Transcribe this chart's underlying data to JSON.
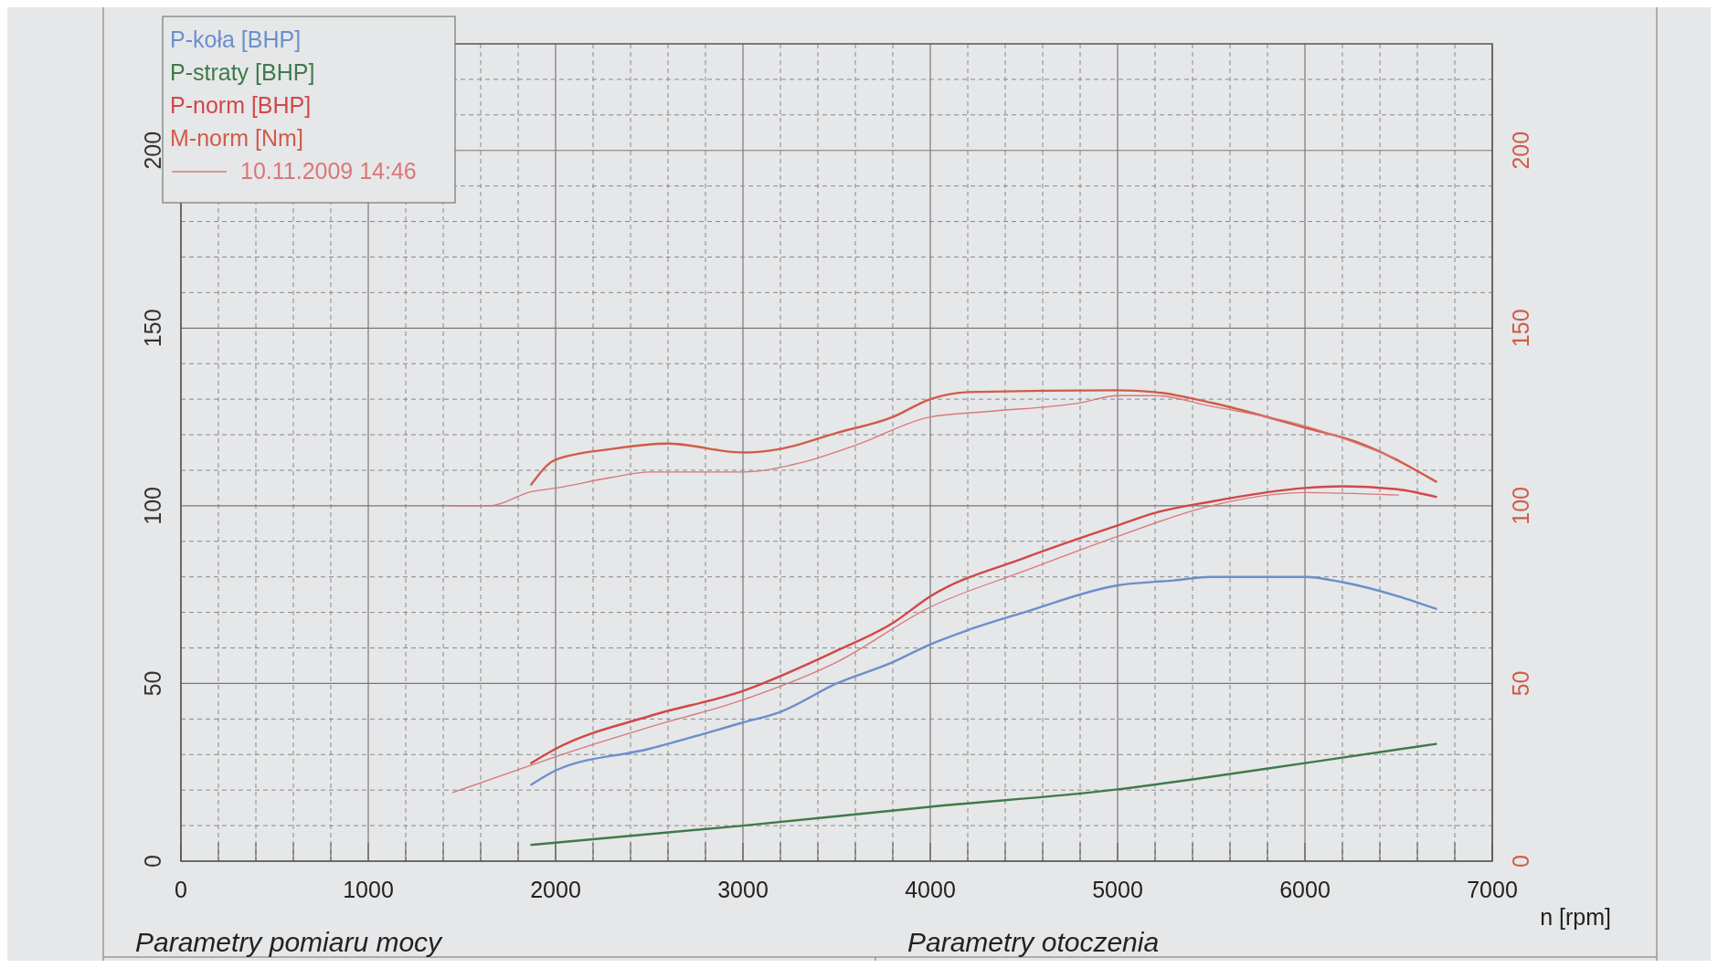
{
  "chart_data": {
    "type": "line",
    "xlabel": "n [rpm]",
    "xlim": [
      0,
      7000
    ],
    "xticks": [
      0,
      {
        "value": 200,
        "label": null
      },
      {
        "value": 400,
        "label": null
      },
      {
        "value": 600,
        "label": null
      },
      {
        "value": 800,
        "label": null
      },
      1000,
      {
        "value": 1200,
        "label": null
      },
      {
        "value": 1400,
        "label": null
      },
      {
        "value": 1600,
        "label": null
      },
      {
        "value": 1800,
        "label": null
      },
      2000,
      {
        "value": 2200,
        "label": null
      },
      {
        "value": 2400,
        "label": null
      },
      {
        "value": 2600,
        "label": null
      },
      {
        "value": 2800,
        "label": null
      },
      3000,
      {
        "value": 3200,
        "label": null
      },
      {
        "value": 3400,
        "label": null
      },
      {
        "value": 3600,
        "label": null
      },
      {
        "value": 3800,
        "label": null
      },
      4000,
      {
        "value": 4200,
        "label": null
      },
      {
        "value": 4400,
        "label": null
      },
      {
        "value": 4600,
        "label": null
      },
      {
        "value": 4800,
        "label": null
      },
      5000,
      {
        "value": 5200,
        "label": null
      },
      {
        "value": 5400,
        "label": null
      },
      {
        "value": 5600,
        "label": null
      },
      {
        "value": 5800,
        "label": null
      },
      6000,
      {
        "value": 6200,
        "label": null
      },
      {
        "value": 6400,
        "label": null
      },
      {
        "value": 6600,
        "label": null
      },
      {
        "value": 6800,
        "label": null
      },
      7000
    ],
    "ylim": [
      0,
      230
    ],
    "yticks": [
      0,
      {
        "value": 10,
        "label": null
      },
      {
        "value": 20,
        "label": null
      },
      {
        "value": 30,
        "label": null
      },
      {
        "value": 40,
        "label": null
      },
      50,
      {
        "value": 60,
        "label": null
      },
      {
        "value": 70,
        "label": null
      },
      {
        "value": 80,
        "label": null
      },
      {
        "value": 90,
        "label": null
      },
      100,
      {
        "value": 110,
        "label": null
      },
      {
        "value": 120,
        "label": null
      },
      {
        "value": 130,
        "label": null
      },
      {
        "value": 140,
        "label": null
      },
      150,
      {
        "value": 160,
        "label": null
      },
      {
        "value": 170,
        "label": null
      },
      {
        "value": 180,
        "label": null
      },
      {
        "value": 190,
        "label": null
      },
      200,
      {
        "value": 210,
        "label": null
      },
      {
        "value": 220,
        "label": null
      }
    ],
    "y2lim": [
      0,
      230
    ],
    "y2ticks": [
      0,
      50,
      100,
      150,
      200
    ],
    "grid": true,
    "legend": "top left",
    "line_style": "solid",
    "annotations": [
      "Parametry pomiaru mocy",
      "Parametry otoczenia"
    ],
    "series": [
      {
        "name": "P-koła [BHP]",
        "color": "#6b8fcc",
        "x": [
          1870,
          2000,
          2500,
          3000,
          3200,
          3500,
          3800,
          4000,
          4200,
          4500,
          5000,
          5300,
          5500,
          6000,
          6200,
          6500,
          6700
        ],
        "values": [
          21.5,
          25.5,
          31.6,
          39,
          42,
          50,
          56,
          61,
          65,
          70,
          77.6,
          79,
          80,
          80,
          78.5,
          74.5,
          71
        ]
      },
      {
        "name": "P-straty [BHP]",
        "color": "#3f7a4a",
        "x": [
          1870,
          3000,
          4000,
          5000,
          5400,
          6000,
          6700
        ],
        "values": [
          4.6,
          10,
          15.3,
          20.2,
          23,
          27.6,
          33
        ]
      },
      {
        "name": "P-norm [BHP]",
        "color": "#d04848",
        "x": [
          1870,
          2000,
          2500,
          3000,
          3500,
          3800,
          4000,
          4500,
          5000,
          5200,
          5500,
          6000,
          6200,
          6500,
          6700
        ],
        "values": [
          27.6,
          31.6,
          40.8,
          47.9,
          59.2,
          67,
          74.5,
          85.3,
          94.5,
          98,
          101.2,
          105,
          105.5,
          104.6,
          102.5
        ]
      },
      {
        "name": "M-norm [Nm]",
        "color": "#d05c48",
        "axis": "y2",
        "x": [
          1870,
          2000,
          2300,
          2600,
          3000,
          3200,
          3500,
          3800,
          4000,
          4200,
          5000,
          5200,
          5500,
          6000,
          6300,
          6700
        ],
        "values": [
          106,
          113,
          116,
          117.5,
          115,
          116,
          120.5,
          125,
          130,
          132,
          132.5,
          132,
          129,
          122,
          117.5,
          106.8
        ]
      },
      {
        "name": "10.11.2009 14:46",
        "color": "#d87878",
        "x": [
          1450,
          1870,
          2000,
          2500,
          3000,
          3500,
          4000,
          4500,
          5000,
          5500,
          6000,
          6500
        ],
        "values": [
          19.3,
          27,
          29.4,
          37.7,
          45.4,
          56,
          71.5,
          81.6,
          91.4,
          100,
          103.7,
          103
        ]
      },
      {
        "color": "#d87878",
        "axis": "y2",
        "x": [
          1450,
          1650,
          1870,
          2000,
          2300,
          2500,
          3000,
          3300,
          3600,
          4000,
          4300,
          4800,
          5000,
          5200,
          5500,
          6000,
          6500
        ],
        "values": [
          100,
          100,
          104,
          105,
          108,
          109.5,
          109.5,
          112,
          117,
          125,
          126.5,
          129,
          131,
          131,
          128,
          122.5,
          113
        ]
      }
    ]
  }
}
